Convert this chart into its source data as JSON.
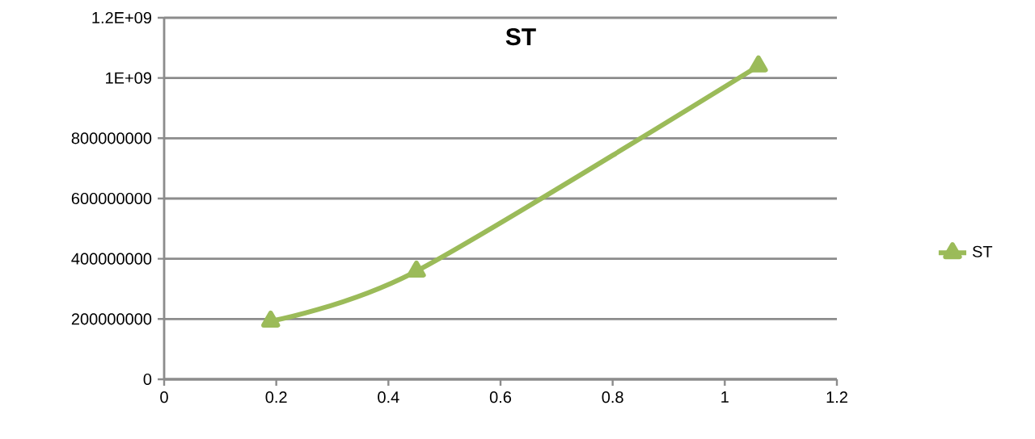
{
  "chart_data": {
    "type": "line",
    "title": "ST",
    "x": [
      0.19,
      0.45,
      1.06
    ],
    "series": [
      {
        "name": "ST",
        "color": "#9bbb59",
        "values": [
          193000000,
          359000000,
          1040000000
        ]
      }
    ],
    "xlim": [
      0,
      1.2
    ],
    "xticks": [
      0,
      0.2,
      0.4,
      0.6,
      0.8,
      1,
      1.2
    ],
    "ylim": [
      0,
      1200000000
    ],
    "yticks": [
      0,
      200000000,
      400000000,
      600000000,
      800000000,
      {
        "value": 1000000000,
        "label": "1E+09"
      },
      {
        "value": 1200000000,
        "label": "1.2E+09"
      }
    ],
    "grid": "y",
    "legend": "right",
    "marker": "triangle",
    "line_style": "solid"
  }
}
